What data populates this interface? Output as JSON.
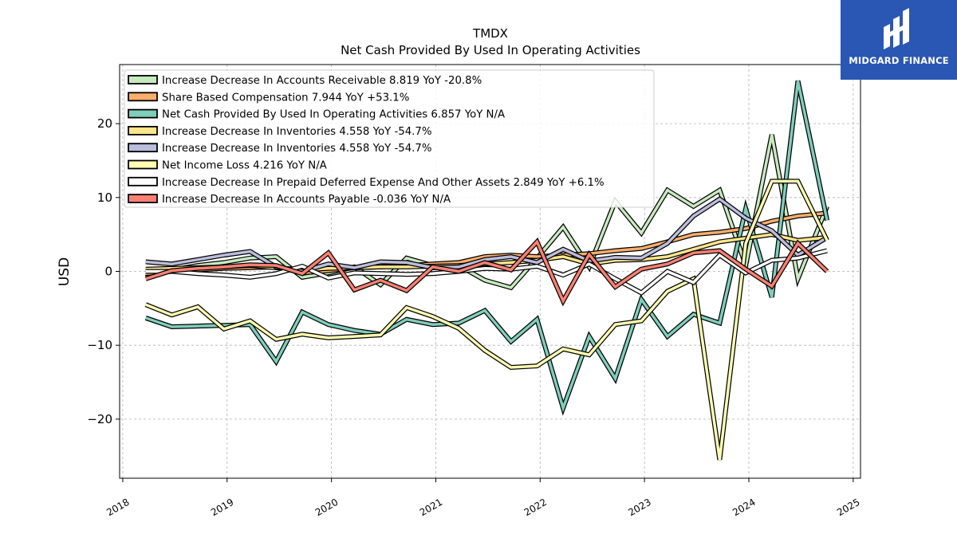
{
  "chart_data": {
    "type": "line",
    "title": "TMDX",
    "subtitle": "Net Cash Provided By Used In Operating Activities",
    "ylabel": "USD",
    "xlabel": "",
    "xlim": [
      2017.97,
      2025.07
    ],
    "ylim": [
      -28,
      28
    ],
    "xticks": [
      2018,
      2019,
      2020,
      2021,
      2022,
      2023,
      2024,
      2025
    ],
    "xtick_labels": [
      "2018",
      "2019",
      "2020",
      "2021",
      "2022",
      "2023",
      "2024",
      "2025"
    ],
    "yticks": [
      -20,
      -10,
      0,
      10,
      20
    ],
    "ytick_labels": [
      "−20",
      "−10",
      "0",
      "10",
      "20"
    ],
    "grid": true,
    "legend_position": "top-left",
    "x": [
      2018.22,
      2018.47,
      2018.72,
      2018.97,
      2019.22,
      2019.47,
      2019.72,
      2019.97,
      2020.22,
      2020.47,
      2020.72,
      2020.97,
      2021.22,
      2021.47,
      2021.72,
      2021.97,
      2022.22,
      2022.47,
      2022.72,
      2022.97,
      2023.22,
      2023.47,
      2023.72,
      2023.97,
      2024.22,
      2024.47,
      2024.75
    ],
    "series": [
      {
        "name": "Increase Decrease In Accounts Receivable  8.819 YoY -20.8%",
        "color": "#c7e9c0",
        "values": [
          -0.8,
          0.2,
          0.8,
          1.2,
          1.8,
          2.0,
          -0.8,
          -0.2,
          0.6,
          -1.8,
          1.8,
          0.8,
          0.8,
          -1.2,
          -2.2,
          1.8,
          6.0,
          0.6,
          9.5,
          5.2,
          11.0,
          8.8,
          11.0,
          0.8,
          18.5,
          -1.0,
          8.8
        ]
      },
      {
        "name": "Share Based Compensation  7.944 YoY +53.1%",
        "color": "#fdae6b",
        "values": [
          -0.3,
          0.0,
          0.2,
          0.4,
          0.5,
          0.6,
          -0.2,
          0.1,
          0.5,
          0.6,
          0.8,
          1.0,
          1.2,
          2.0,
          2.2,
          2.0,
          2.2,
          2.4,
          2.8,
          3.1,
          4.0,
          5.0,
          5.3,
          5.8,
          6.8,
          7.5,
          7.9
        ]
      },
      {
        "name": "Net Cash Provided By Used In Operating Activities  6.857 YoY N/A",
        "color": "#7fcdbb",
        "values": [
          -6.3,
          -7.5,
          -7.4,
          -7.3,
          -7.2,
          -12.2,
          -5.5,
          -7.2,
          -8.0,
          -8.5,
          -6.5,
          -7.2,
          -7.0,
          -5.3,
          -9.5,
          -6.5,
          -18.5,
          -8.8,
          -14.5,
          -3.8,
          -8.8,
          -5.8,
          -7.0,
          8.5,
          -3.5,
          25.8,
          6.9
        ]
      },
      {
        "name": "Increase Decrease In Inventories  4.558 YoY -54.7%",
        "color": "#fde68a",
        "values": [
          0.3,
          0.4,
          0.5,
          0.6,
          0.8,
          0.5,
          0.2,
          0.4,
          0.5,
          0.6,
          0.6,
          0.7,
          0.8,
          1.0,
          1.2,
          1.5,
          2.0,
          1.0,
          1.5,
          1.6,
          2.0,
          3.0,
          4.0,
          4.5,
          5.0,
          4.2,
          4.6
        ]
      },
      {
        "name": "Increase Decrease In Inventories  4.558 YoY -54.7%",
        "color": "#bcbddc",
        "values": [
          1.3,
          1.0,
          1.6,
          2.2,
          2.7,
          0.6,
          0.0,
          1.0,
          0.5,
          1.3,
          1.2,
          0.5,
          0.6,
          1.6,
          2.0,
          1.2,
          3.0,
          1.4,
          1.9,
          1.8,
          3.8,
          7.5,
          9.8,
          7.2,
          5.5,
          2.2,
          4.6
        ]
      },
      {
        "name": "Net Income Loss  4.216 YoY N/A",
        "color": "#ffffb3",
        "values": [
          -4.5,
          -5.9,
          -4.8,
          -7.8,
          -6.7,
          -9.2,
          -8.5,
          -9.0,
          -8.8,
          -8.6,
          -4.9,
          -6.1,
          -7.7,
          -10.7,
          -13.0,
          -12.8,
          -10.5,
          -11.3,
          -7.2,
          -6.7,
          -2.7,
          -1.0,
          -25.5,
          3.8,
          12.2,
          12.2,
          4.2
        ]
      },
      {
        "name": "Increase Decrease In Prepaid Deferred Expense And Other Assets  2.849 YoY +6.1%",
        "color": "#ffffff",
        "values": [
          0.0,
          0.0,
          -0.3,
          -0.5,
          -0.8,
          -0.3,
          0.7,
          -0.9,
          -0.2,
          -0.3,
          -0.4,
          -0.3,
          0.0,
          0.4,
          0.3,
          0.7,
          -0.5,
          1.0,
          -1.0,
          -2.9,
          0.0,
          -1.5,
          2.2,
          -0.2,
          1.5,
          1.8,
          2.8
        ]
      },
      {
        "name": "Increase Decrease In Accounts Payable  -0.036 YoY N/A",
        "color": "#fb8072",
        "values": [
          -1.0,
          0.1,
          0.4,
          0.6,
          0.9,
          0.8,
          -0.3,
          2.5,
          -2.5,
          -1.2,
          -2.6,
          0.6,
          0.0,
          1.2,
          0.2,
          4.0,
          -4.0,
          2.3,
          -2.1,
          0.3,
          1.0,
          2.5,
          2.8,
          0.3,
          -2.0,
          3.8,
          -0.0
        ]
      }
    ]
  },
  "logo": {
    "text": "MIDGARD FINANCE",
    "icon": "midgard-logo-icon",
    "background": "#2a56b4"
  }
}
